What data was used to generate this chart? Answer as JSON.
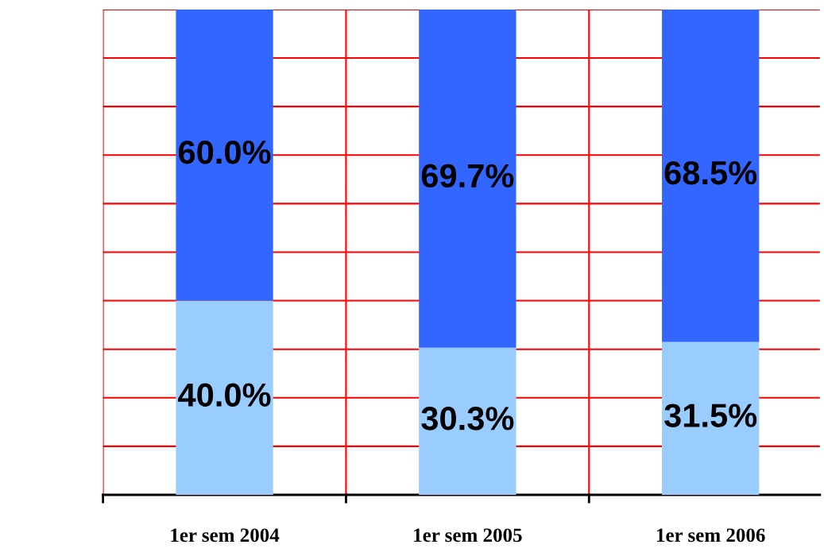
{
  "chart_data": {
    "type": "bar",
    "stacked": true,
    "categories": [
      "1er sem 2004",
      "1er sem 2005",
      "1er sem 2006"
    ],
    "series": [
      {
        "color": "#99ccff",
        "values": [
          40.0,
          30.3,
          31.5
        ],
        "value_labels": [
          "40.0%",
          "30.3%",
          "31.5%"
        ]
      },
      {
        "color": "#3366ff",
        "values": [
          60.0,
          69.7,
          68.5
        ],
        "value_labels": [
          "60.0%",
          "69.7%",
          "68.5%"
        ]
      }
    ],
    "ylim": [
      0,
      100
    ],
    "yticks": [
      {
        "value": 0,
        "label": null
      },
      {
        "value": 10,
        "label": null
      },
      {
        "value": 20,
        "label": null
      },
      {
        "value": 30,
        "label": null
      },
      {
        "value": 40,
        "label": null
      },
      {
        "value": 50,
        "label": null
      },
      {
        "value": 60,
        "label": null
      },
      {
        "value": 70,
        "label": null
      },
      {
        "value": 80,
        "label": null
      },
      {
        "value": 90,
        "label": null
      },
      {
        "value": 100,
        "label": null
      }
    ],
    "tick_labels": "x",
    "grid": true,
    "legend": false
  }
}
